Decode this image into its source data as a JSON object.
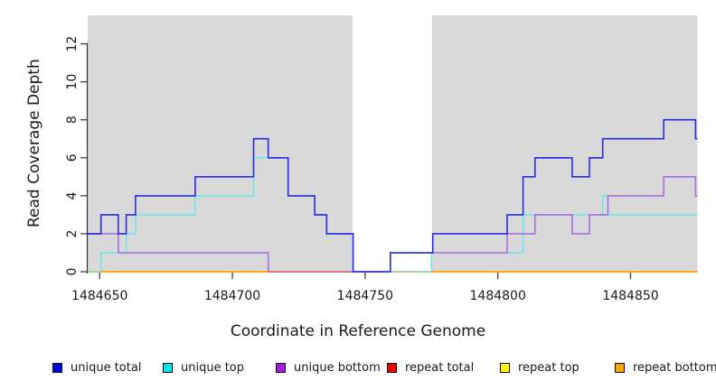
{
  "chart_data": {
    "type": "line",
    "subtype": "step-coverage-plot",
    "title": "",
    "xlabel": "Coordinate in Reference Genome",
    "ylabel": "Read Coverage Depth",
    "xlim": [
      1484645.5,
      1484875.2
    ],
    "ylim": [
      0,
      13.5
    ],
    "x_ticks": [
      1484650,
      1484700,
      1484750,
      1484800,
      1484850
    ],
    "y_ticks": [
      0,
      2,
      4,
      6,
      8,
      10,
      12
    ],
    "grid": false,
    "plot_background": "#d9d9d9",
    "masked_region": {
      "x_start": 1484745.3,
      "x_end": 1484775.2,
      "color": "#ffffff"
    },
    "legend_position": "bottom",
    "series": [
      {
        "name": "unique total",
        "line_color": "#2a2ae0",
        "legend_color": "#0000ee",
        "step_points": [
          [
            1484645.5,
            2
          ],
          [
            1484650.5,
            3
          ],
          [
            1484657,
            2
          ],
          [
            1484660,
            3
          ],
          [
            1484663.5,
            4
          ],
          [
            1484686,
            5
          ],
          [
            1484708,
            7
          ],
          [
            1484713.5,
            6
          ],
          [
            1484721,
            4
          ],
          [
            1484731,
            3
          ],
          [
            1484735.5,
            2
          ],
          [
            1484745.5,
            0
          ],
          [
            1484759.5,
            1
          ],
          [
            1484775.5,
            2
          ],
          [
            1484803.5,
            3
          ],
          [
            1484809.5,
            5
          ],
          [
            1484814,
            6
          ],
          [
            1484828,
            5
          ],
          [
            1484834.5,
            6
          ],
          [
            1484839.5,
            7
          ],
          [
            1484862.5,
            8
          ],
          [
            1484874.5,
            7
          ]
        ]
      },
      {
        "name": "unique top",
        "line_color": "#6fe6ea",
        "legend_color": "#00e6e6",
        "step_points": [
          [
            1484645.5,
            0
          ],
          [
            1484650.5,
            1
          ],
          [
            1484660,
            2
          ],
          [
            1484663.5,
            3
          ],
          [
            1484686,
            4
          ],
          [
            1484708,
            6
          ],
          [
            1484721,
            4
          ],
          [
            1484731,
            3
          ],
          [
            1484735.5,
            2
          ],
          [
            1484745.5,
            0
          ],
          [
            1484775,
            1
          ],
          [
            1484809.5,
            3
          ],
          [
            1484839.5,
            4
          ],
          [
            1484841.5,
            3
          ]
        ]
      },
      {
        "name": "unique bottom",
        "line_color": "#a96ee0",
        "legend_color": "#a11fe0",
        "step_points": [
          [
            1484645.5,
            2
          ],
          [
            1484657,
            1
          ],
          [
            1484713.5,
            0
          ],
          [
            1484759.5,
            1
          ],
          [
            1484803.5,
            2
          ],
          [
            1484814,
            3
          ],
          [
            1484828,
            2
          ],
          [
            1484834.5,
            3
          ],
          [
            1484841.5,
            4
          ],
          [
            1484862.5,
            5
          ],
          [
            1484874.5,
            4
          ]
        ]
      },
      {
        "name": "repeat total",
        "line_color": "#e03030",
        "legend_color": "#ee0000",
        "step_points": [
          [
            1484645.5,
            0
          ]
        ]
      },
      {
        "name": "repeat top",
        "line_color": "#f0f030",
        "legend_color": "#ffff00",
        "step_points": [
          [
            1484645.5,
            0
          ]
        ]
      },
      {
        "name": "repeat bottom",
        "line_color": "#ffa500",
        "legend_color": "#ffa500",
        "step_points": [
          [
            1484645.5,
            0
          ]
        ]
      }
    ],
    "baseline_overlap_segments": [
      {
        "x_start": 1484645.5,
        "x_end": 1484650.5,
        "color": "#a5d6a5"
      },
      {
        "x_start": 1484713.5,
        "x_end": 1484745.5,
        "color": "#de7285"
      },
      {
        "x_start": 1484759.5,
        "x_end": 1484774.5,
        "color": "#a5d6a5"
      }
    ]
  }
}
